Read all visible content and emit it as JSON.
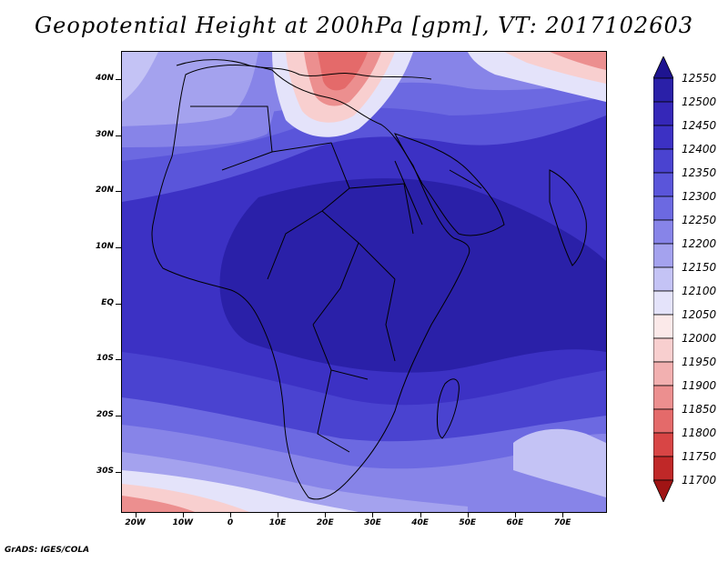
{
  "title": "Geopotential Height at 200hPa [gpm], VT: 2017102603",
  "footer": "GrADS: IGES/COLA",
  "axes": {
    "y_labels": [
      {
        "text": "40N",
        "lat": 40
      },
      {
        "text": "30N",
        "lat": 30
      },
      {
        "text": "20N",
        "lat": 20
      },
      {
        "text": "10N",
        "lat": 10
      },
      {
        "text": "EQ",
        "lat": 0
      },
      {
        "text": "10S",
        "lat": -10
      },
      {
        "text": "20S",
        "lat": -20
      },
      {
        "text": "30S",
        "lat": -30
      }
    ],
    "x_labels": [
      {
        "text": "20W",
        "lon": -20
      },
      {
        "text": "10W",
        "lon": -10
      },
      {
        "text": "0",
        "lon": 0
      },
      {
        "text": "10E",
        "lon": 10
      },
      {
        "text": "20E",
        "lon": 20
      },
      {
        "text": "30E",
        "lon": 30
      },
      {
        "text": "40E",
        "lon": 40
      },
      {
        "text": "50E",
        "lon": 50
      },
      {
        "text": "60E",
        "lon": 60
      },
      {
        "text": "70E",
        "lon": 70
      }
    ],
    "lon_range": [
      -23,
      79
    ],
    "lat_range": [
      -37,
      45
    ]
  },
  "colorbar": {
    "labels": [
      "12550",
      "12500",
      "12450",
      "12400",
      "12350",
      "12300",
      "12250",
      "12200",
      "12150",
      "12100",
      "12050",
      "12000",
      "11950",
      "11900",
      "11850",
      "11800",
      "11750",
      "11700"
    ],
    "colors": [
      "#1e1490",
      "#2a20a8",
      "#3527b8",
      "#3c31c4",
      "#4a43d0",
      "#5a55da",
      "#6c69e1",
      "#8784e8",
      "#a4a2ee",
      "#c4c3f5",
      "#e4e3fa",
      "#fbe9e9",
      "#f8cfcf",
      "#f2b0b0",
      "#ec8f8f",
      "#e46a6a",
      "#d84545",
      "#c02828",
      "#a01414"
    ]
  },
  "map_features": {
    "description_icon": "height-field-map",
    "palette_low": "#e55a5a",
    "palette_high": "#3527b8"
  }
}
